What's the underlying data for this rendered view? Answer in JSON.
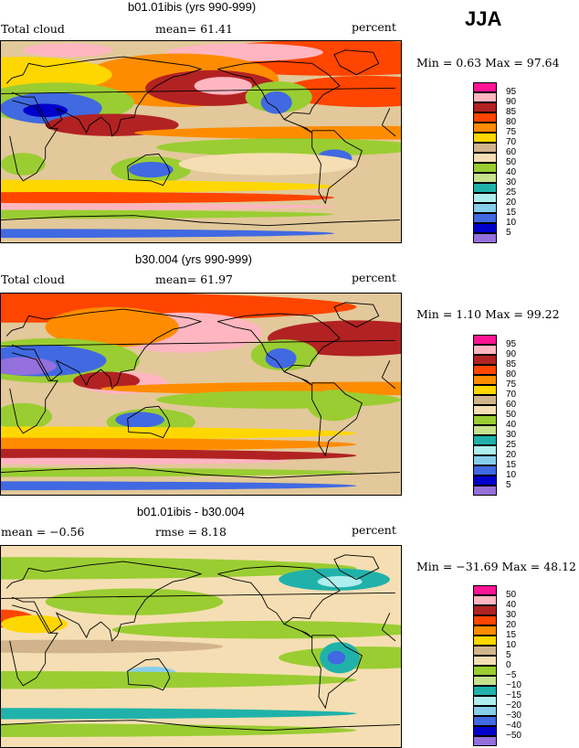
{
  "season": "JJA",
  "panels": [
    {
      "title": "b01.01ibis (yrs 990-999)",
      "left_text": "Total cloud",
      "mid_text": "mean=  61.41",
      "right_text": "percent",
      "minmax": "Min =   0.63 Max =  97.64",
      "base": "#e2c89a",
      "legend": [
        {
          "label": "95",
          "color": "#ff1493"
        },
        {
          "label": "90",
          "color": "#ffb6c1"
        },
        {
          "label": "85",
          "color": "#b22222"
        },
        {
          "label": "80",
          "color": "#ff4500"
        },
        {
          "label": "75",
          "color": "#ff8c00"
        },
        {
          "label": "70",
          "color": "#ffd700"
        },
        {
          "label": "60",
          "color": "#d2b48c"
        },
        {
          "label": "50",
          "color": "#f5deb3"
        },
        {
          "label": "40",
          "color": "#9acd32"
        },
        {
          "label": "30",
          "color": "#c6e28c"
        },
        {
          "label": "25",
          "color": "#20b2aa"
        },
        {
          "label": "20",
          "color": "#afeeee"
        },
        {
          "label": "15",
          "color": "#87ceeb"
        },
        {
          "label": "10",
          "color": "#4169e1"
        },
        {
          "label": "5",
          "color": "#0000cd"
        },
        {
          "label": "",
          "color": "#9370db"
        }
      ],
      "blobs": [
        {
          "color": "#ff4500",
          "lat": 75,
          "lon": -60,
          "w": 140,
          "h": 16
        },
        {
          "color": "#ffb6c1",
          "lat": 80,
          "lon": -140,
          "w": 70,
          "h": 8
        },
        {
          "color": "#ffb6c1",
          "lat": 82,
          "lon": 60,
          "w": 40,
          "h": 6
        },
        {
          "color": "#ff8c00",
          "lat": 55,
          "lon": 160,
          "w": 90,
          "h": 24
        },
        {
          "color": "#b22222",
          "lat": 48,
          "lon": -170,
          "w": 60,
          "h": 16
        },
        {
          "color": "#ffb6c1",
          "lat": 50,
          "lon": -160,
          "w": 26,
          "h": 8
        },
        {
          "color": "#ff4500",
          "lat": 45,
          "lon": -30,
          "w": 80,
          "h": 14
        },
        {
          "color": "#ffd700",
          "lat": 60,
          "lon": 20,
          "w": 80,
          "h": 16
        },
        {
          "color": "#9acd32",
          "lat": 35,
          "lon": 50,
          "w": 70,
          "h": 18
        },
        {
          "color": "#4169e1",
          "lat": 30,
          "lon": 45,
          "w": 46,
          "h": 14
        },
        {
          "color": "#0000cd",
          "lat": 28,
          "lon": 40,
          "w": 20,
          "h": 6
        },
        {
          "color": "#9acd32",
          "lat": 40,
          "lon": -110,
          "w": 30,
          "h": 14
        },
        {
          "color": "#4169e1",
          "lat": 35,
          "lon": -112,
          "w": 14,
          "h": 10
        },
        {
          "color": "#b22222",
          "lat": 15,
          "lon": 100,
          "w": 60,
          "h": 10
        },
        {
          "color": "#ff8c00",
          "lat": 8,
          "lon": -20,
          "w": 220,
          "h": 6
        },
        {
          "color": "#9acd32",
          "lat": -5,
          "lon": -100,
          "w": 120,
          "h": 8
        },
        {
          "color": "#9acd32",
          "lat": -25,
          "lon": 135,
          "w": 36,
          "h": 12
        },
        {
          "color": "#4169e1",
          "lat": -25,
          "lon": 135,
          "w": 20,
          "h": 7
        },
        {
          "color": "#9acd32",
          "lat": -20,
          "lon": 20,
          "w": 20,
          "h": 10
        },
        {
          "color": "#4169e1",
          "lat": -15,
          "lon": -60,
          "w": 16,
          "h": 8
        },
        {
          "color": "#f5deb3",
          "lat": -20,
          "lon": -120,
          "w": 80,
          "h": 10
        },
        {
          "color": "#ffd700",
          "lat": -40,
          "lon": 0,
          "w": 300,
          "h": 6
        },
        {
          "color": "#ff4500",
          "lat": -50,
          "lon": 60,
          "w": 240,
          "h": 5
        },
        {
          "color": "#ffb6c1",
          "lat": -58,
          "lon": 0,
          "w": 300,
          "h": 3
        },
        {
          "color": "#9acd32",
          "lat": -65,
          "lon": 0,
          "w": 300,
          "h": 4
        },
        {
          "color": "#4169e1",
          "lat": -82,
          "lon": 0,
          "w": 300,
          "h": 4
        }
      ]
    },
    {
      "title": "b30.004 (yrs 990-999)",
      "left_text": "Total cloud",
      "mid_text": "mean=  61.97",
      "right_text": "percent",
      "minmax": "Min =   1.10 Max =  99.22",
      "base": "#e2c89a",
      "legend": [
        {
          "label": "95",
          "color": "#ff1493"
        },
        {
          "label": "90",
          "color": "#ffb6c1"
        },
        {
          "label": "85",
          "color": "#b22222"
        },
        {
          "label": "80",
          "color": "#ff4500"
        },
        {
          "label": "75",
          "color": "#ff8c00"
        },
        {
          "label": "70",
          "color": "#ffd700"
        },
        {
          "label": "60",
          "color": "#d2b48c"
        },
        {
          "label": "50",
          "color": "#f5deb3"
        },
        {
          "label": "40",
          "color": "#9acd32"
        },
        {
          "label": "30",
          "color": "#c6e28c"
        },
        {
          "label": "25",
          "color": "#20b2aa"
        },
        {
          "label": "20",
          "color": "#afeeee"
        },
        {
          "label": "15",
          "color": "#87ceeb"
        },
        {
          "label": "10",
          "color": "#4169e1"
        },
        {
          "label": "5",
          "color": "#0000cd"
        },
        {
          "label": "",
          "color": "#9370db"
        }
      ],
      "blobs": [
        {
          "color": "#ff4500",
          "lat": 78,
          "lon": 0,
          "w": 320,
          "h": 14
        },
        {
          "color": "#ffb6c1",
          "lat": 55,
          "lon": 165,
          "w": 70,
          "h": 18
        },
        {
          "color": "#b22222",
          "lat": 50,
          "lon": -40,
          "w": 80,
          "h": 16
        },
        {
          "color": "#ff8c00",
          "lat": 60,
          "lon": 100,
          "w": 60,
          "h": 18
        },
        {
          "color": "#9acd32",
          "lat": 30,
          "lon": 45,
          "w": 80,
          "h": 20
        },
        {
          "color": "#4169e1",
          "lat": 30,
          "lon": 35,
          "w": 60,
          "h": 14
        },
        {
          "color": "#9370db",
          "lat": 25,
          "lon": 20,
          "w": 30,
          "h": 8
        },
        {
          "color": "#ffb6c1",
          "lat": 10,
          "lon": 110,
          "w": 40,
          "h": 10
        },
        {
          "color": "#b22222",
          "lat": 12,
          "lon": 95,
          "w": 30,
          "h": 8
        },
        {
          "color": "#9acd32",
          "lat": 35,
          "lon": -105,
          "w": 30,
          "h": 14
        },
        {
          "color": "#4169e1",
          "lat": 32,
          "lon": -108,
          "w": 14,
          "h": 9
        },
        {
          "color": "#ff8c00",
          "lat": 5,
          "lon": -30,
          "w": 240,
          "h": 6
        },
        {
          "color": "#9acd32",
          "lat": -5,
          "lon": -110,
          "w": 110,
          "h": 8
        },
        {
          "color": "#9acd32",
          "lat": -25,
          "lon": 135,
          "w": 40,
          "h": 12
        },
        {
          "color": "#4169e1",
          "lat": -23,
          "lon": 125,
          "w": 22,
          "h": 7
        },
        {
          "color": "#9acd32",
          "lat": -20,
          "lon": 20,
          "w": 26,
          "h": 12
        },
        {
          "color": "#9acd32",
          "lat": -10,
          "lon": -60,
          "w": 24,
          "h": 14
        },
        {
          "color": "#ffd700",
          "lat": -35,
          "lon": 0,
          "w": 320,
          "h": 6
        },
        {
          "color": "#ff8c00",
          "lat": -45,
          "lon": 0,
          "w": 320,
          "h": 6
        },
        {
          "color": "#b22222",
          "lat": -55,
          "lon": 0,
          "w": 320,
          "h": 6
        },
        {
          "color": "#ffb6c1",
          "lat": -60,
          "lon": 60,
          "w": 200,
          "h": 3
        },
        {
          "color": "#9acd32",
          "lat": -70,
          "lon": 0,
          "w": 320,
          "h": 4
        },
        {
          "color": "#4169e1",
          "lat": -82,
          "lon": 0,
          "w": 320,
          "h": 4
        }
      ]
    },
    {
      "title": "b01.01ibis - b30.004",
      "left_text": "mean =  −0.56",
      "mid_text": "rmse =   8.18",
      "right_text": "percent",
      "minmax": "Min = −31.69 Max =  48.12",
      "base": "#f5deb3",
      "legend": [
        {
          "label": "50",
          "color": "#ff1493"
        },
        {
          "label": "40",
          "color": "#ffb6c1"
        },
        {
          "label": "30",
          "color": "#b22222"
        },
        {
          "label": "20",
          "color": "#ff4500"
        },
        {
          "label": "15",
          "color": "#ff8c00"
        },
        {
          "label": "10",
          "color": "#ffd700"
        },
        {
          "label": "5",
          "color": "#d2b48c"
        },
        {
          "label": "0",
          "color": "#f5deb3"
        },
        {
          "label": "−5",
          "color": "#9acd32"
        },
        {
          "label": "−10",
          "color": "#c6e28c"
        },
        {
          "label": "−15",
          "color": "#20b2aa"
        },
        {
          "label": "−20",
          "color": "#afeeee"
        },
        {
          "label": "−30",
          "color": "#87ceeb"
        },
        {
          "label": "−40",
          "color": "#4169e1"
        },
        {
          "label": "−50",
          "color": "#0000cd"
        },
        {
          "label": "",
          "color": "#9370db"
        }
      ],
      "blobs": [
        {
          "color": "#9acd32",
          "lat": 70,
          "lon": 0,
          "w": 320,
          "h": 10
        },
        {
          "color": "#20b2aa",
          "lat": 60,
          "lon": -60,
          "w": 50,
          "h": 10
        },
        {
          "color": "#afeeee",
          "lat": 58,
          "lon": -55,
          "w": 20,
          "h": 5
        },
        {
          "color": "#9acd32",
          "lat": 40,
          "lon": 120,
          "w": 80,
          "h": 12
        },
        {
          "color": "#ff4500",
          "lat": 25,
          "lon": 0,
          "w": 30,
          "h": 8
        },
        {
          "color": "#ffd700",
          "lat": 20,
          "lon": 30,
          "w": 30,
          "h": 8
        },
        {
          "color": "#9acd32",
          "lat": 15,
          "lon": -120,
          "w": 140,
          "h": 8
        },
        {
          "color": "#d2b48c",
          "lat": 0,
          "lon": 60,
          "w": 140,
          "h": 6
        },
        {
          "color": "#9acd32",
          "lat": -10,
          "lon": -30,
          "w": 80,
          "h": 10
        },
        {
          "color": "#20b2aa",
          "lat": -10,
          "lon": -55,
          "w": 18,
          "h": 14
        },
        {
          "color": "#4169e1",
          "lat": -10,
          "lon": -58,
          "w": 8,
          "h": 6
        },
        {
          "color": "#87ceeb",
          "lat": -25,
          "lon": 135,
          "w": 24,
          "h": 7
        },
        {
          "color": "#9acd32",
          "lat": -30,
          "lon": 0,
          "w": 320,
          "h": 8
        },
        {
          "color": "#20b2aa",
          "lat": -60,
          "lon": 0,
          "w": 320,
          "h": 5
        },
        {
          "color": "#9acd32",
          "lat": -75,
          "lon": 0,
          "w": 320,
          "h": 6
        }
      ]
    }
  ]
}
